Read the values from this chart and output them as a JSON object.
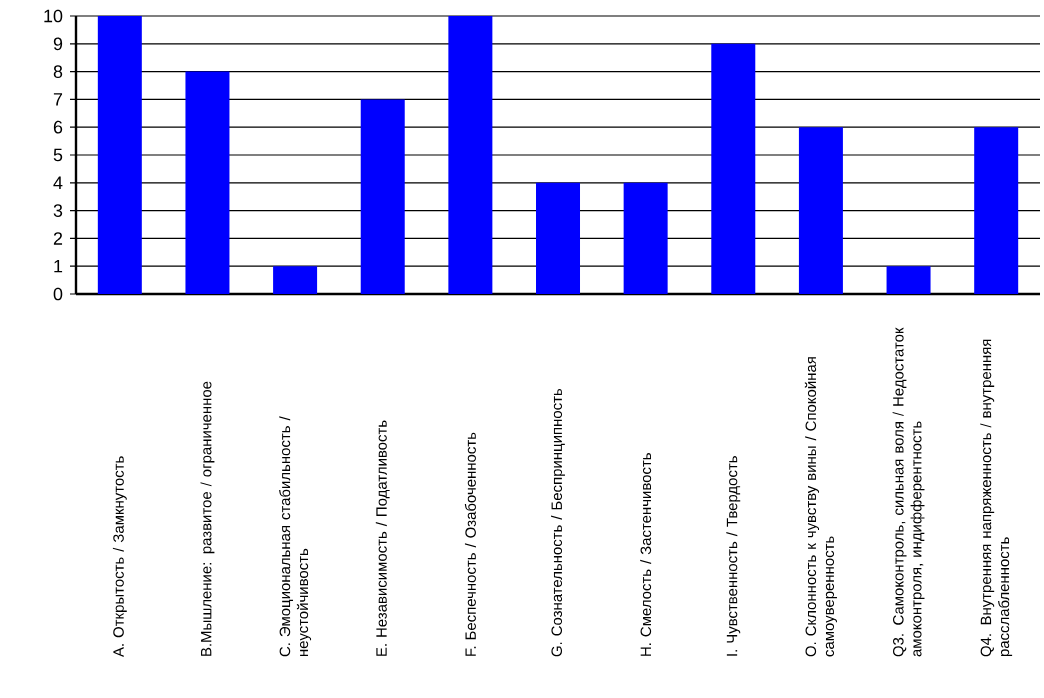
{
  "chart_data": {
    "type": "bar",
    "categories": [
      "A. Открытость / Замкнутость",
      "B.Мышление: развитое / ограниченное",
      "C. Эмоциональная стабильность / неустойчивость",
      "E. Независимость / Податливость",
      "F. Беспечность / Озабоченность",
      "G. Сознательность / Беспринципность",
      "H. Смелость / Застенчивость",
      "I. Чувственность / Твердость",
      "O. Склонность к чувству вины / Спокойная самоуверенность",
      "Q3. Самоконтроль, сильная воля / Недостаток амоконтроля, индифферентность",
      "Q4. Внутренняя напряженность / внутренняя расслабленность"
    ],
    "values": [
      10,
      8,
      1,
      7,
      10,
      4,
      4,
      9,
      6,
      1,
      6
    ],
    "color": "#0000ff",
    "ylim": [
      0,
      10
    ],
    "yticks": [
      0,
      1,
      2,
      3,
      4,
      5,
      6,
      7,
      8,
      9,
      10
    ],
    "grid": "y"
  }
}
